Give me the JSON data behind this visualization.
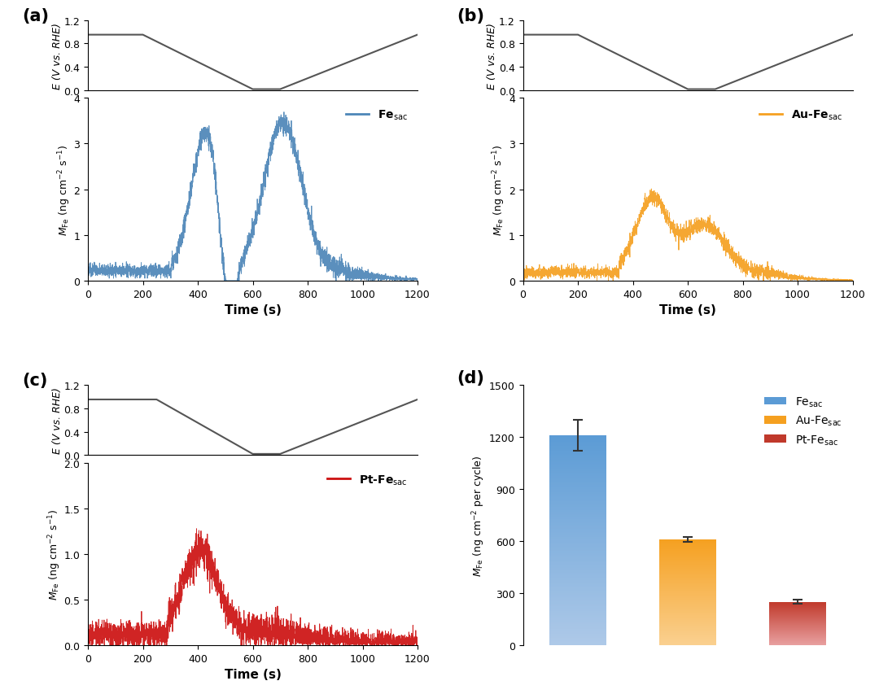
{
  "color_a": "#4d86b8",
  "color_b": "#f5a020",
  "color_c": "#cc1111",
  "color_voltage": "#555555",
  "ylabel_voltage": "E (V vs. RHE)",
  "ylabel_mass": "$M_{\\mathrm{Fe}}$ (ng cm$^{-2}$ s$^{-1}$)",
  "xlabel": "Time (s)",
  "ylim_voltage": [
    0,
    1.2
  ],
  "ylim_a": [
    0,
    4
  ],
  "ylim_b": [
    0,
    4
  ],
  "ylim_c": [
    0,
    2
  ],
  "voltage_a": {
    "x": [
      0,
      200,
      600,
      700,
      1200
    ],
    "y": [
      0.95,
      0.95,
      0.02,
      0.02,
      0.95
    ]
  },
  "voltage_b": {
    "x": [
      0,
      200,
      600,
      700,
      1200
    ],
    "y": [
      0.95,
      0.95,
      0.02,
      0.02,
      0.95
    ]
  },
  "voltage_c": {
    "x": [
      0,
      250,
      600,
      700,
      1200
    ],
    "y": [
      0.95,
      0.95,
      0.02,
      0.02,
      0.95
    ]
  },
  "bar_values": [
    1210,
    610,
    250
  ],
  "bar_errors": [
    90,
    15,
    12
  ],
  "bar_colors_top": [
    "#5b9bd5",
    "#f5a020",
    "#c0392b"
  ],
  "bar_colors_bottom": [
    "#aec9e8",
    "#fad090",
    "#e8a0a0"
  ],
  "bar_ylabel": "$M_{\\mathrm{Fe}}$ (ng cm$^{-2}$ per cycle)",
  "bar_ylim": [
    0,
    1500
  ],
  "bar_yticks": [
    0,
    300,
    600,
    900,
    1200,
    1500
  ],
  "legend_a": "Fe$_{\\mathrm{sac}}$",
  "legend_b": "Au-Fe$_{\\mathrm{sac}}$",
  "legend_c": "Pt-Fe$_{\\mathrm{sac}}$",
  "label_a": "(a)",
  "label_b": "(b)",
  "label_c": "(c)",
  "label_d": "(d)"
}
